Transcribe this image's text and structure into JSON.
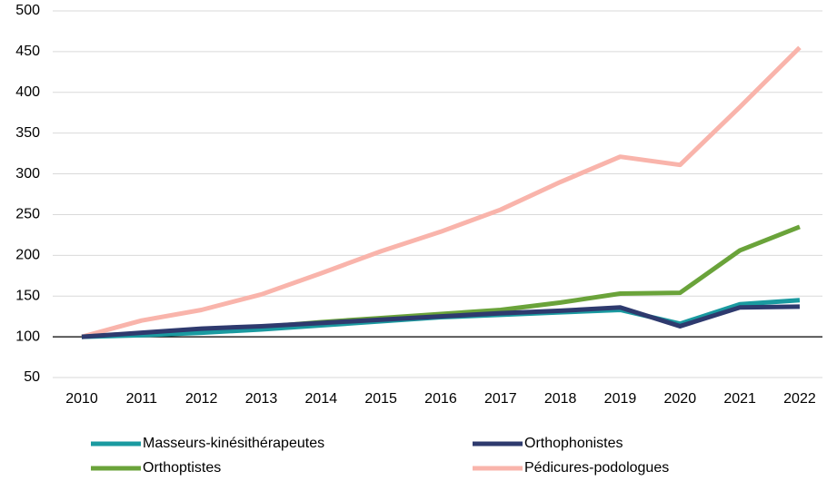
{
  "chart_data": {
    "type": "line",
    "categories": [
      "2010",
      "2011",
      "2012",
      "2013",
      "2014",
      "2015",
      "2016",
      "2017",
      "2018",
      "2019",
      "2020",
      "2021",
      "2022"
    ],
    "series": [
      {
        "name": "Masseurs-kinésithérapeutes",
        "color": "#1a9aa0",
        "values": [
          100,
          102,
          105,
          109,
          114,
          119,
          124,
          127,
          130,
          133,
          116,
          140,
          145
        ]
      },
      {
        "name": "Orthophonistes",
        "color": "#2e3a6e",
        "values": [
          100,
          105,
          110,
          113,
          117,
          121,
          125,
          129,
          132,
          136,
          113,
          136,
          137
        ]
      },
      {
        "name": "Orthoptistes",
        "color": "#6aa33a",
        "values": [
          100,
          104,
          108,
          112,
          118,
          123,
          128,
          133,
          142,
          153,
          154,
          206,
          235
        ]
      },
      {
        "name": "Pédicures-podologues",
        "color": "#f9b4ab",
        "values": [
          100,
          120,
          133,
          152,
          178,
          205,
          229,
          256,
          290,
          321,
          311,
          382,
          455
        ]
      }
    ],
    "ylim": [
      50,
      500
    ],
    "yticks": [
      50,
      100,
      150,
      200,
      250,
      300,
      350,
      400,
      450,
      500
    ],
    "grid": true,
    "xaxis_crosses": 100,
    "legend": "bottom"
  }
}
